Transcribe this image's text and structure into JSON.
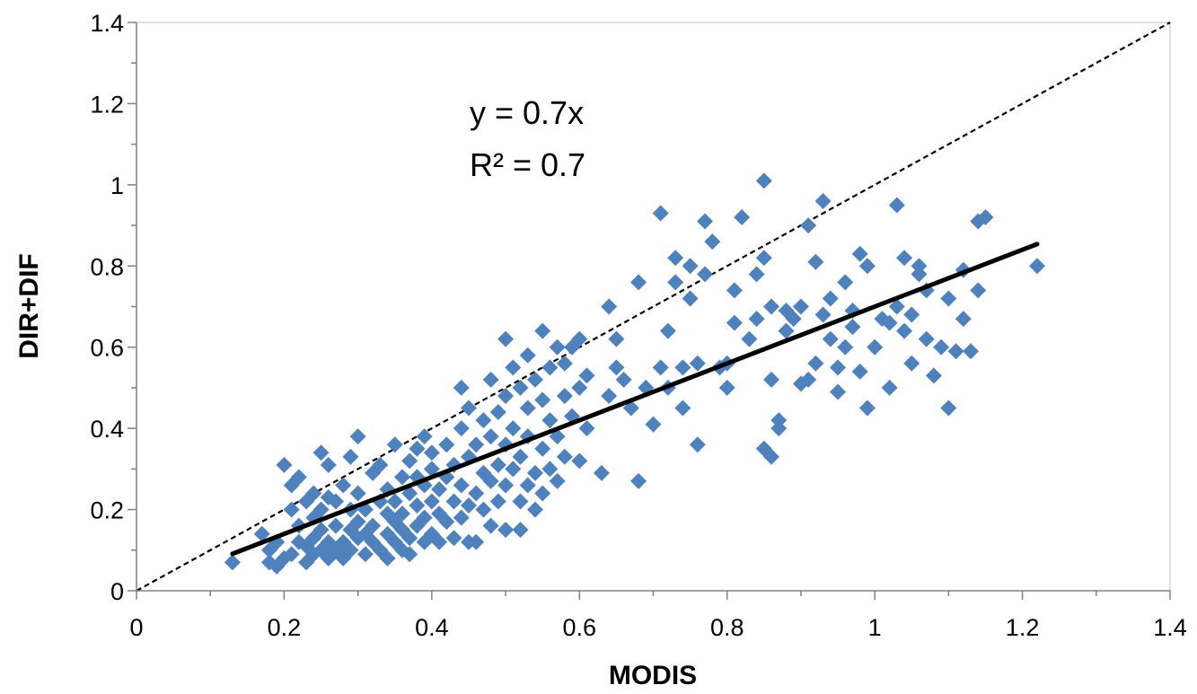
{
  "chart_data": {
    "type": "scatter",
    "title": "",
    "xlabel": "MODIS",
    "ylabel": "DIR+DIF",
    "xlim": [
      0,
      1.4
    ],
    "ylim": [
      0,
      1.4
    ],
    "x_ticks": [
      "0",
      "0.2",
      "0.4",
      "0.6",
      "0.8",
      "1",
      "1.2",
      "1.4"
    ],
    "y_ticks": [
      "0",
      "0.2",
      "0.4",
      "0.6",
      "0.8",
      "1",
      "1.2",
      "1.4"
    ],
    "grid": false,
    "legend": "none",
    "marker": "diamond",
    "marker_color": "#4f81bd",
    "trendline": {
      "slope": 0.7,
      "x_range": [
        0.13,
        1.22
      ],
      "color": "#000000",
      "style": "solid"
    },
    "reference_line": {
      "slope": 1.0,
      "x_range": [
        0,
        1.4
      ],
      "color": "#000000",
      "style": "dashed"
    },
    "annotations": {
      "equation": "y = 0.7x",
      "r2": "R² = 0.7"
    },
    "series": [
      {
        "points": [
          [
            0.13,
            0.07
          ],
          [
            0.17,
            0.14
          ],
          [
            0.18,
            0.1
          ],
          [
            0.18,
            0.07
          ],
          [
            0.19,
            0.06
          ],
          [
            0.19,
            0.12
          ],
          [
            0.2,
            0.08
          ],
          [
            0.2,
            0.31
          ],
          [
            0.21,
            0.2
          ],
          [
            0.21,
            0.09
          ],
          [
            0.21,
            0.26
          ],
          [
            0.22,
            0.12
          ],
          [
            0.22,
            0.16
          ],
          [
            0.22,
            0.28
          ],
          [
            0.23,
            0.07
          ],
          [
            0.23,
            0.11
          ],
          [
            0.23,
            0.22
          ],
          [
            0.24,
            0.09
          ],
          [
            0.24,
            0.13
          ],
          [
            0.24,
            0.24
          ],
          [
            0.24,
            0.18
          ],
          [
            0.25,
            0.34
          ],
          [
            0.25,
            0.1
          ],
          [
            0.25,
            0.15
          ],
          [
            0.25,
            0.2
          ],
          [
            0.26,
            0.08
          ],
          [
            0.26,
            0.12
          ],
          [
            0.26,
            0.31
          ],
          [
            0.26,
            0.23
          ],
          [
            0.27,
            0.1
          ],
          [
            0.27,
            0.16
          ],
          [
            0.27,
            0.22
          ],
          [
            0.28,
            0.12
          ],
          [
            0.28,
            0.08
          ],
          [
            0.28,
            0.26
          ],
          [
            0.29,
            0.15
          ],
          [
            0.29,
            0.2
          ],
          [
            0.29,
            0.33
          ],
          [
            0.29,
            0.1
          ],
          [
            0.3,
            0.38
          ],
          [
            0.3,
            0.13
          ],
          [
            0.3,
            0.17
          ],
          [
            0.3,
            0.24
          ],
          [
            0.31,
            0.09
          ],
          [
            0.31,
            0.14
          ],
          [
            0.31,
            0.2
          ],
          [
            0.32,
            0.12
          ],
          [
            0.32,
            0.29
          ],
          [
            0.32,
            0.16
          ],
          [
            0.33,
            0.1
          ],
          [
            0.33,
            0.22
          ],
          [
            0.33,
            0.31
          ],
          [
            0.34,
            0.08
          ],
          [
            0.34,
            0.14
          ],
          [
            0.34,
            0.19
          ],
          [
            0.34,
            0.25
          ],
          [
            0.35,
            0.12
          ],
          [
            0.35,
            0.17
          ],
          [
            0.35,
            0.36
          ],
          [
            0.35,
            0.22
          ],
          [
            0.36,
            0.1
          ],
          [
            0.36,
            0.15
          ],
          [
            0.36,
            0.28
          ],
          [
            0.36,
            0.19
          ],
          [
            0.37,
            0.13
          ],
          [
            0.37,
            0.24
          ],
          [
            0.37,
            0.32
          ],
          [
            0.37,
            0.09
          ],
          [
            0.38,
            0.16
          ],
          [
            0.38,
            0.21
          ],
          [
            0.38,
            0.35
          ],
          [
            0.38,
            0.28
          ],
          [
            0.39,
            0.12
          ],
          [
            0.39,
            0.18
          ],
          [
            0.39,
            0.26
          ],
          [
            0.39,
            0.38
          ],
          [
            0.4,
            0.14
          ],
          [
            0.4,
            0.22
          ],
          [
            0.4,
            0.3
          ],
          [
            0.4,
            0.34
          ],
          [
            0.41,
            0.12
          ],
          [
            0.41,
            0.19
          ],
          [
            0.41,
            0.25
          ],
          [
            0.42,
            0.17
          ],
          [
            0.42,
            0.28
          ],
          [
            0.42,
            0.36
          ],
          [
            0.43,
            0.13
          ],
          [
            0.43,
            0.22
          ],
          [
            0.43,
            0.31
          ],
          [
            0.44,
            0.5
          ],
          [
            0.44,
            0.18
          ],
          [
            0.44,
            0.4
          ],
          [
            0.44,
            0.26
          ],
          [
            0.45,
            0.12
          ],
          [
            0.45,
            0.21
          ],
          [
            0.45,
            0.33
          ],
          [
            0.45,
            0.45
          ],
          [
            0.46,
            0.24
          ],
          [
            0.46,
            0.36
          ],
          [
            0.46,
            0.12
          ],
          [
            0.47,
            0.29
          ],
          [
            0.47,
            0.42
          ],
          [
            0.47,
            0.2
          ],
          [
            0.48,
            0.16
          ],
          [
            0.48,
            0.27
          ],
          [
            0.48,
            0.38
          ],
          [
            0.48,
            0.52
          ],
          [
            0.49,
            0.31
          ],
          [
            0.49,
            0.44
          ],
          [
            0.49,
            0.22
          ],
          [
            0.5,
            0.62
          ],
          [
            0.5,
            0.15
          ],
          [
            0.5,
            0.26
          ],
          [
            0.5,
            0.36
          ],
          [
            0.5,
            0.48
          ],
          [
            0.51,
            0.3
          ],
          [
            0.51,
            0.4
          ],
          [
            0.51,
            0.55
          ],
          [
            0.52,
            0.15
          ],
          [
            0.52,
            0.22
          ],
          [
            0.52,
            0.33
          ],
          [
            0.52,
            0.5
          ],
          [
            0.53,
            0.26
          ],
          [
            0.53,
            0.38
          ],
          [
            0.53,
            0.45
          ],
          [
            0.53,
            0.58
          ],
          [
            0.54,
            0.2
          ],
          [
            0.54,
            0.29
          ],
          [
            0.54,
            0.52
          ],
          [
            0.55,
            0.64
          ],
          [
            0.55,
            0.24
          ],
          [
            0.55,
            0.35
          ],
          [
            0.55,
            0.47
          ],
          [
            0.56,
            0.42
          ],
          [
            0.56,
            0.55
          ],
          [
            0.56,
            0.3
          ],
          [
            0.57,
            0.27
          ],
          [
            0.57,
            0.38
          ],
          [
            0.57,
            0.6
          ],
          [
            0.58,
            0.33
          ],
          [
            0.58,
            0.48
          ],
          [
            0.58,
            0.56
          ],
          [
            0.59,
            0.43
          ],
          [
            0.59,
            0.6
          ],
          [
            0.6,
            0.32
          ],
          [
            0.6,
            0.5
          ],
          [
            0.6,
            0.62
          ],
          [
            0.61,
            0.4
          ],
          [
            0.61,
            0.53
          ],
          [
            0.63,
            0.29
          ],
          [
            0.64,
            0.7
          ],
          [
            0.64,
            0.48
          ],
          [
            0.65,
            0.55
          ],
          [
            0.65,
            0.62
          ],
          [
            0.66,
            0.52
          ],
          [
            0.67,
            0.45
          ],
          [
            0.68,
            0.27
          ],
          [
            0.68,
            0.76
          ],
          [
            0.69,
            0.5
          ],
          [
            0.7,
            0.41
          ],
          [
            0.71,
            0.93
          ],
          [
            0.71,
            0.55
          ],
          [
            0.72,
            0.5
          ],
          [
            0.72,
            0.64
          ],
          [
            0.73,
            0.76
          ],
          [
            0.73,
            0.82
          ],
          [
            0.74,
            0.45
          ],
          [
            0.74,
            0.55
          ],
          [
            0.75,
            0.8
          ],
          [
            0.75,
            0.72
          ],
          [
            0.76,
            0.36
          ],
          [
            0.76,
            0.56
          ],
          [
            0.77,
            0.78
          ],
          [
            0.77,
            0.91
          ],
          [
            0.78,
            0.86
          ],
          [
            0.79,
            0.55
          ],
          [
            0.8,
            0.5
          ],
          [
            0.8,
            0.56
          ],
          [
            0.81,
            0.66
          ],
          [
            0.81,
            0.74
          ],
          [
            0.82,
            0.92
          ],
          [
            0.83,
            0.62
          ],
          [
            0.84,
            0.78
          ],
          [
            0.84,
            0.67
          ],
          [
            0.85,
            1.01
          ],
          [
            0.85,
            0.82
          ],
          [
            0.85,
            0.35
          ],
          [
            0.86,
            0.52
          ],
          [
            0.86,
            0.33
          ],
          [
            0.86,
            0.7
          ],
          [
            0.87,
            0.4
          ],
          [
            0.87,
            0.42
          ],
          [
            0.88,
            0.64
          ],
          [
            0.88,
            0.69
          ],
          [
            0.89,
            0.67
          ],
          [
            0.9,
            0.51
          ],
          [
            0.9,
            0.7
          ],
          [
            0.91,
            0.9
          ],
          [
            0.91,
            0.52
          ],
          [
            0.92,
            0.81
          ],
          [
            0.92,
            0.56
          ],
          [
            0.93,
            0.96
          ],
          [
            0.93,
            0.68
          ],
          [
            0.94,
            0.72
          ],
          [
            0.94,
            0.62
          ],
          [
            0.95,
            0.55
          ],
          [
            0.95,
            0.49
          ],
          [
            0.96,
            0.6
          ],
          [
            0.96,
            0.76
          ],
          [
            0.97,
            0.69
          ],
          [
            0.97,
            0.65
          ],
          [
            0.98,
            0.83
          ],
          [
            0.98,
            0.54
          ],
          [
            0.99,
            0.45
          ],
          [
            0.99,
            0.8
          ],
          [
            1.0,
            0.6
          ],
          [
            1.01,
            0.67
          ],
          [
            1.02,
            0.5
          ],
          [
            1.02,
            0.66
          ],
          [
            1.03,
            0.95
          ],
          [
            1.03,
            0.7
          ],
          [
            1.04,
            0.82
          ],
          [
            1.04,
            0.64
          ],
          [
            1.05,
            0.56
          ],
          [
            1.05,
            0.68
          ],
          [
            1.06,
            0.78
          ],
          [
            1.06,
            0.8
          ],
          [
            1.07,
            0.74
          ],
          [
            1.07,
            0.62
          ],
          [
            1.08,
            0.53
          ],
          [
            1.09,
            0.6
          ],
          [
            1.1,
            0.72
          ],
          [
            1.1,
            0.45
          ],
          [
            1.11,
            0.59
          ],
          [
            1.12,
            0.67
          ],
          [
            1.12,
            0.79
          ],
          [
            1.13,
            0.59
          ],
          [
            1.14,
            0.74
          ],
          [
            1.14,
            0.91
          ],
          [
            1.15,
            0.92
          ],
          [
            1.22,
            0.8
          ]
        ]
      }
    ]
  }
}
